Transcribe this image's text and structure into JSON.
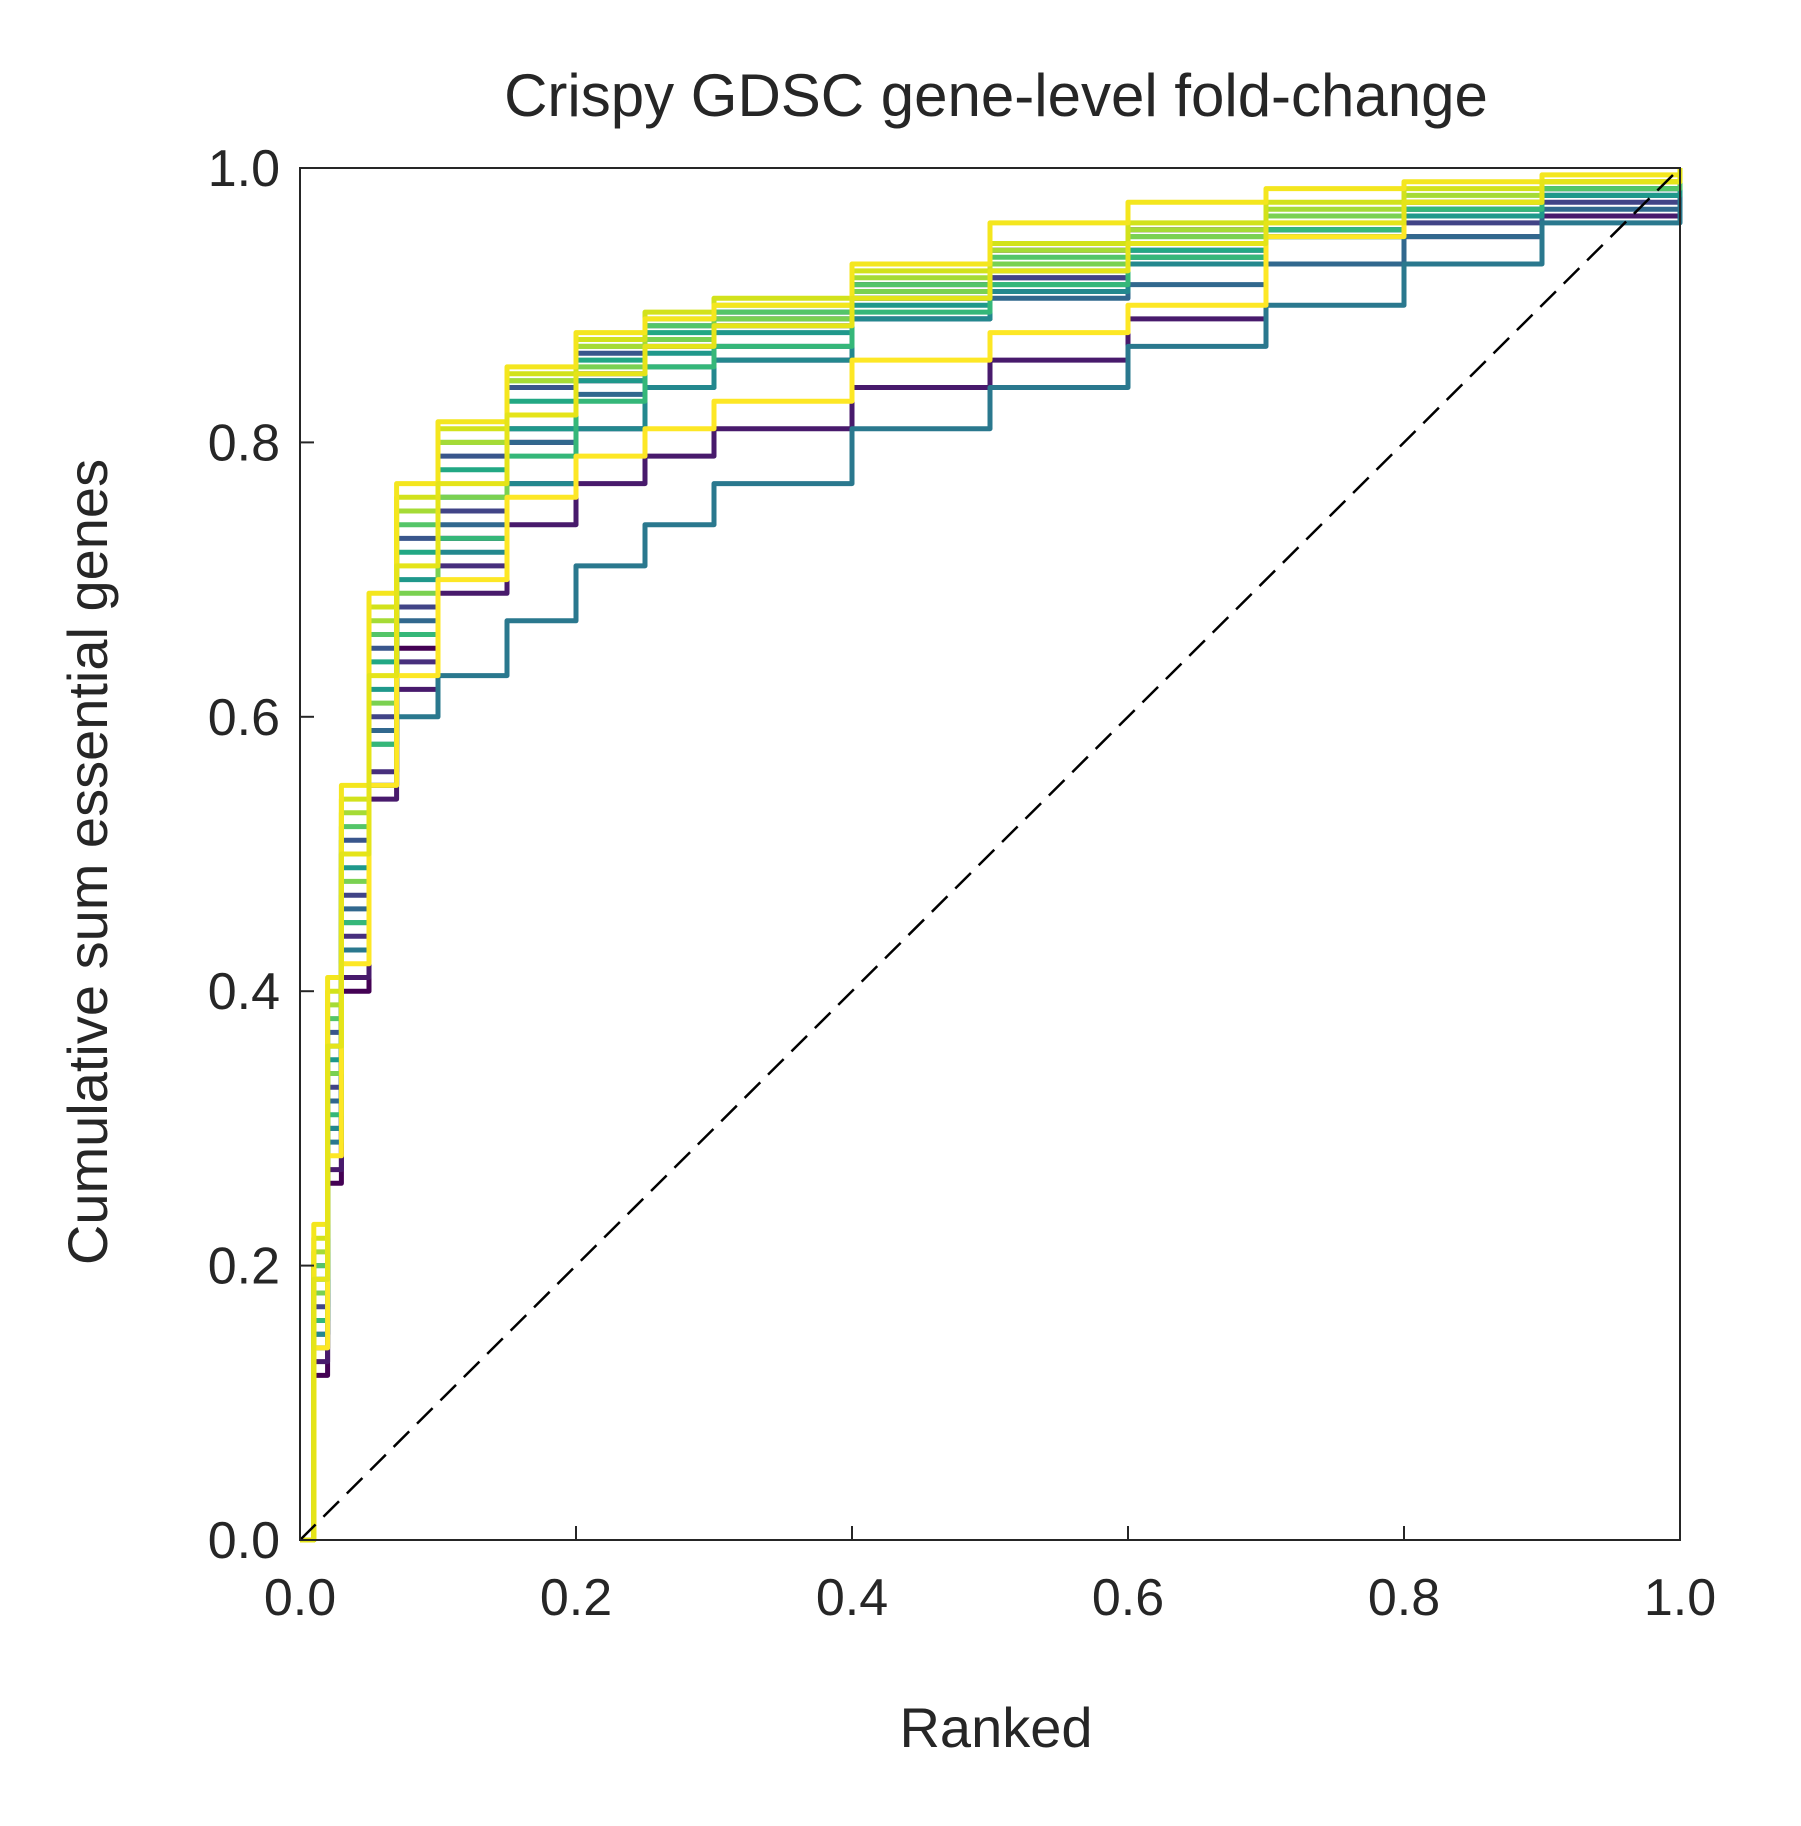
{
  "chart_data": {
    "type": "line",
    "title": "Crispy GDSC gene-level fold-change",
    "xlabel": "Ranked",
    "ylabel": "Cumulative sum essential genes",
    "xlim": [
      0.0,
      1.0
    ],
    "ylim": [
      0.0,
      1.0
    ],
    "x_ticks": [
      "0.0",
      "0.2",
      "0.4",
      "0.6",
      "0.8",
      "1.0"
    ],
    "y_ticks": [
      "0.0",
      "0.2",
      "0.4",
      "0.6",
      "0.8",
      "1.0"
    ],
    "grid": false,
    "legend": "none",
    "colormap": "viridis",
    "reference_line": {
      "style": "dashed",
      "color": "#000000",
      "x": [
        0,
        1
      ],
      "y": [
        0,
        1
      ]
    },
    "x": [
      0,
      0.01,
      0.02,
      0.03,
      0.05,
      0.07,
      0.1,
      0.15,
      0.2,
      0.25,
      0.3,
      0.4,
      0.5,
      0.6,
      0.7,
      0.8,
      0.9,
      1.0
    ],
    "series": [
      {
        "color": "#440154",
        "values": [
          0,
          0.12,
          0.26,
          0.4,
          0.55,
          0.65,
          0.73,
          0.8,
          0.845,
          0.875,
          0.89,
          0.915,
          0.94,
          0.955,
          0.965,
          0.975,
          0.985,
          1.0
        ]
      },
      {
        "color": "#481a6c",
        "values": [
          0,
          0.13,
          0.27,
          0.41,
          0.54,
          0.62,
          0.69,
          0.74,
          0.77,
          0.79,
          0.81,
          0.84,
          0.86,
          0.89,
          0.93,
          0.95,
          0.965,
          1.0
        ]
      },
      {
        "color": "#472f7d",
        "values": [
          0,
          0.15,
          0.3,
          0.44,
          0.56,
          0.64,
          0.71,
          0.77,
          0.81,
          0.84,
          0.86,
          0.89,
          0.92,
          0.94,
          0.955,
          0.97,
          0.985,
          1.0
        ]
      },
      {
        "color": "#414487",
        "values": [
          0,
          0.17,
          0.33,
          0.47,
          0.6,
          0.68,
          0.75,
          0.81,
          0.85,
          0.87,
          0.885,
          0.905,
          0.92,
          0.935,
          0.95,
          0.96,
          0.975,
          1.0
        ]
      },
      {
        "color": "#39568c",
        "values": [
          0,
          0.2,
          0.37,
          0.51,
          0.65,
          0.73,
          0.79,
          0.84,
          0.865,
          0.885,
          0.895,
          0.91,
          0.93,
          0.945,
          0.955,
          0.965,
          0.98,
          1.0
        ]
      },
      {
        "color": "#31688e",
        "values": [
          0,
          0.16,
          0.32,
          0.46,
          0.59,
          0.67,
          0.74,
          0.8,
          0.835,
          0.855,
          0.87,
          0.89,
          0.905,
          0.915,
          0.93,
          0.95,
          0.97,
          1.0
        ]
      },
      {
        "color": "#2a788e",
        "values": [
          0,
          0.14,
          0.29,
          0.43,
          0.55,
          0.6,
          0.63,
          0.67,
          0.71,
          0.74,
          0.77,
          0.81,
          0.84,
          0.87,
          0.9,
          0.93,
          0.96,
          1.0
        ]
      },
      {
        "color": "#23888e",
        "values": [
          0,
          0.15,
          0.3,
          0.45,
          0.58,
          0.66,
          0.72,
          0.77,
          0.81,
          0.84,
          0.86,
          0.89,
          0.91,
          0.93,
          0.95,
          0.965,
          0.98,
          1.0
        ]
      },
      {
        "color": "#1f988b",
        "values": [
          0,
          0.18,
          0.35,
          0.49,
          0.62,
          0.7,
          0.76,
          0.81,
          0.845,
          0.865,
          0.88,
          0.9,
          0.915,
          0.935,
          0.95,
          0.965,
          0.98,
          1.0
        ]
      },
      {
        "color": "#22a884",
        "values": [
          0,
          0.19,
          0.36,
          0.5,
          0.64,
          0.72,
          0.78,
          0.83,
          0.86,
          0.88,
          0.89,
          0.905,
          0.925,
          0.94,
          0.955,
          0.97,
          0.985,
          1.0
        ]
      },
      {
        "color": "#35b779",
        "values": [
          0,
          0.16,
          0.31,
          0.45,
          0.58,
          0.66,
          0.73,
          0.79,
          0.83,
          0.855,
          0.87,
          0.895,
          0.915,
          0.935,
          0.955,
          0.97,
          0.985,
          1.0
        ]
      },
      {
        "color": "#54c568",
        "values": [
          0,
          0.2,
          0.38,
          0.52,
          0.66,
          0.74,
          0.8,
          0.845,
          0.87,
          0.885,
          0.895,
          0.915,
          0.935,
          0.95,
          0.965,
          0.975,
          0.985,
          1.0
        ]
      },
      {
        "color": "#7ad151",
        "values": [
          0,
          0.18,
          0.34,
          0.48,
          0.61,
          0.69,
          0.76,
          0.82,
          0.855,
          0.875,
          0.89,
          0.91,
          0.93,
          0.95,
          0.965,
          0.975,
          0.99,
          1.0
        ]
      },
      {
        "color": "#a5db36",
        "values": [
          0,
          0.21,
          0.39,
          0.53,
          0.67,
          0.75,
          0.8,
          0.845,
          0.87,
          0.89,
          0.9,
          0.92,
          0.94,
          0.955,
          0.97,
          0.98,
          0.99,
          1.0
        ]
      },
      {
        "color": "#d2e21b",
        "values": [
          0,
          0.22,
          0.4,
          0.54,
          0.68,
          0.76,
          0.81,
          0.85,
          0.875,
          0.895,
          0.905,
          0.925,
          0.945,
          0.96,
          0.975,
          0.985,
          0.99,
          1.0
        ]
      },
      {
        "color": "#fde725",
        "values": [
          0,
          0.14,
          0.28,
          0.42,
          0.55,
          0.63,
          0.7,
          0.76,
          0.79,
          0.81,
          0.83,
          0.86,
          0.88,
          0.9,
          0.95,
          0.975,
          0.99,
          1.0
        ]
      },
      {
        "color": "#f4e61e",
        "values": [
          0,
          0.23,
          0.41,
          0.55,
          0.69,
          0.77,
          0.815,
          0.855,
          0.88,
          0.89,
          0.9,
          0.93,
          0.96,
          0.975,
          0.985,
          0.99,
          0.995,
          1.0
        ]
      },
      {
        "color": "#e5e419",
        "values": [
          0,
          0.19,
          0.36,
          0.5,
          0.63,
          0.71,
          0.77,
          0.82,
          0.85,
          0.87,
          0.885,
          0.905,
          0.925,
          0.945,
          0.96,
          0.975,
          0.99,
          1.0
        ]
      }
    ]
  }
}
